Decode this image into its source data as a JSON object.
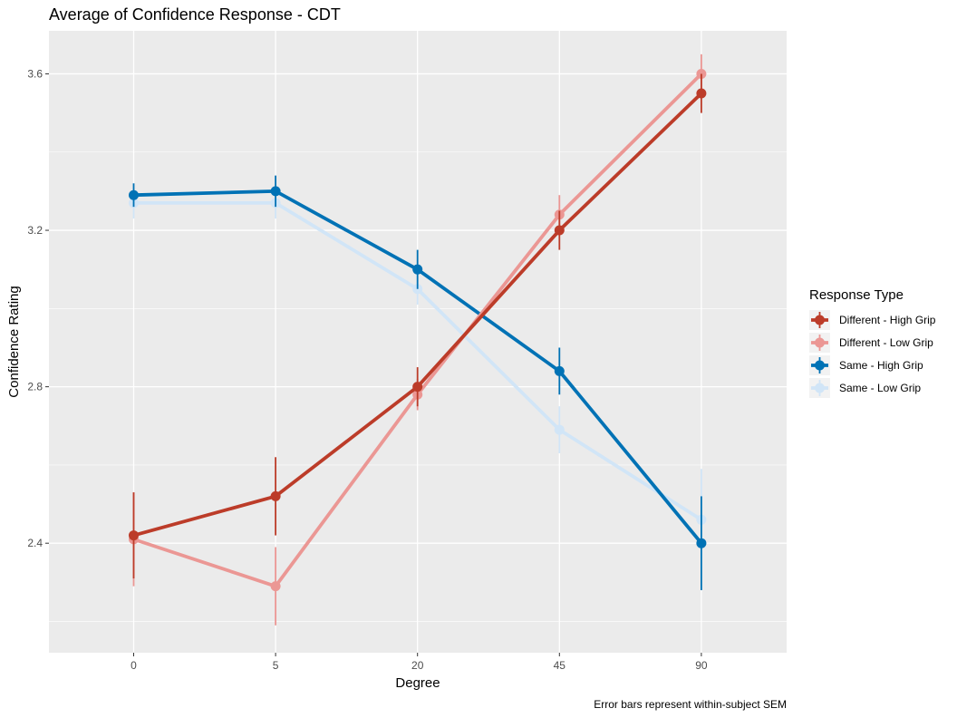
{
  "chart_data": {
    "type": "line",
    "title": "Average of Confidence Response - CDT",
    "xlabel": "Degree",
    "ylabel": "Confidence Rating",
    "caption": "Error bars represent within-subject SEM",
    "categories": [
      "0",
      "5",
      "20",
      "45",
      "90"
    ],
    "ylim": [
      2.12,
      3.71
    ],
    "yticks": [
      2.4,
      2.8,
      3.2,
      3.6
    ],
    "ytick_labels": [
      "2.4",
      "2.8",
      "3.2",
      "3.6"
    ],
    "grid": true,
    "legend": {
      "title": "Response Type",
      "position": "right"
    },
    "series": [
      {
        "name": "Same - Low Grip",
        "color": "#d1e5f7",
        "values": [
          3.27,
          3.27,
          3.05,
          2.69,
          2.46
        ],
        "errors": [
          0.04,
          0.04,
          0.04,
          0.06,
          0.13
        ]
      },
      {
        "name": "Same - High Grip",
        "color": "#0072b5",
        "values": [
          3.29,
          3.3,
          3.1,
          2.84,
          2.4
        ],
        "errors": [
          0.03,
          0.04,
          0.05,
          0.06,
          0.12
        ]
      },
      {
        "name": "Different - Low Grip",
        "color": "#eb9794",
        "values": [
          2.41,
          2.29,
          2.78,
          3.24,
          3.6
        ],
        "errors": [
          0.12,
          0.1,
          0.04,
          0.05,
          0.05
        ]
      },
      {
        "name": "Different - High Grip",
        "color": "#bc3c29",
        "values": [
          2.42,
          2.52,
          2.8,
          3.2,
          3.55
        ],
        "errors": [
          0.11,
          0.1,
          0.05,
          0.05,
          0.05
        ]
      }
    ],
    "legend_order": [
      "Different - High Grip",
      "Different - Low Grip",
      "Same - High Grip",
      "Same - Low Grip"
    ]
  }
}
